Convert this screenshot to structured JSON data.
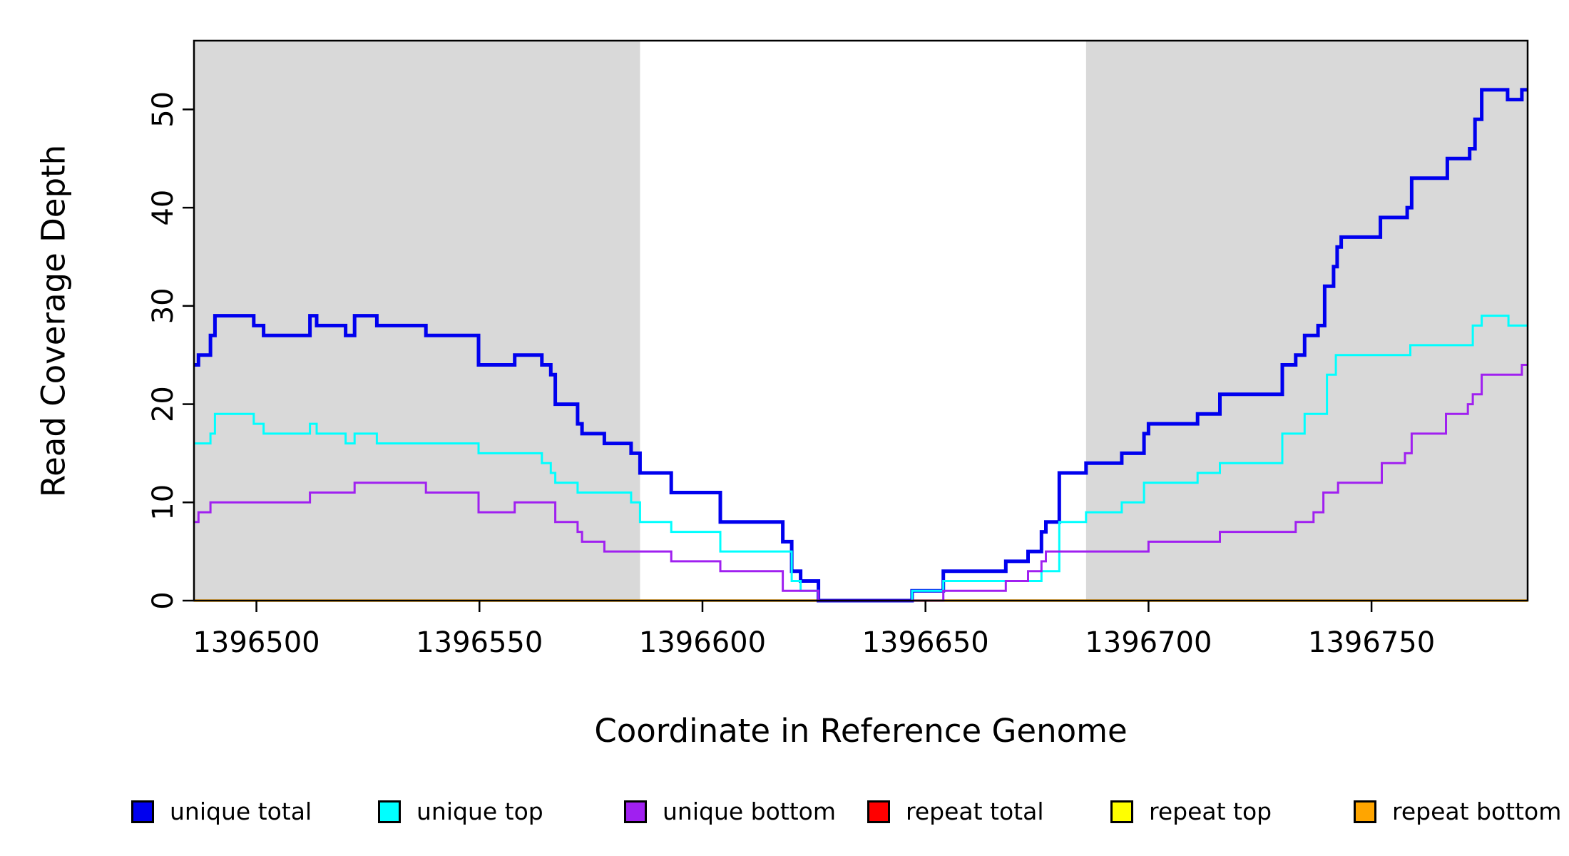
{
  "chart_data": {
    "type": "line",
    "subtype": "step",
    "title": "",
    "xlabel": "Coordinate in Reference Genome",
    "ylabel": "Read Coverage Depth",
    "x_range": [
      1396486,
      1396785
    ],
    "y_max": 57,
    "x_ticks": [
      1396500,
      1396550,
      1396600,
      1396650,
      1396700,
      1396750
    ],
    "y_ticks": [
      0,
      10,
      20,
      30,
      40,
      50
    ],
    "grid": "off",
    "legend_position": "bottom",
    "shaded_color": "#D9D9D9",
    "shaded_regions": [
      {
        "from": 1396486,
        "to": 1396586
      },
      {
        "from": 1396686,
        "to": 1396785
      }
    ],
    "draw_order": [
      3,
      4,
      5,
      0,
      1,
      2
    ],
    "series": [
      {
        "name": "unique total",
        "color": "#0000EE",
        "width": 5,
        "steps": [
          [
            1396486,
            24
          ],
          [
            1396487,
            25
          ],
          [
            1396489.7,
            27
          ],
          [
            1396490.7,
            29
          ],
          [
            1396499.4,
            28
          ],
          [
            1396501.6,
            27
          ],
          [
            1396512,
            29
          ],
          [
            1396513.5,
            28
          ],
          [
            1396520,
            27
          ],
          [
            1396522,
            29
          ],
          [
            1396527,
            28
          ],
          [
            1396538,
            27
          ],
          [
            1396549.8,
            24
          ],
          [
            1396557.9,
            25
          ],
          [
            1396564,
            24
          ],
          [
            1396566,
            23
          ],
          [
            1396567,
            20
          ],
          [
            1396572,
            18
          ],
          [
            1396573,
            17
          ],
          [
            1396578,
            16
          ],
          [
            1396584,
            15
          ],
          [
            1396586,
            13
          ],
          [
            1396593,
            11
          ],
          [
            1396604,
            8
          ],
          [
            1396618,
            6
          ],
          [
            1396620,
            3
          ],
          [
            1396622,
            2
          ],
          [
            1396626,
            0
          ],
          [
            1396647,
            1
          ],
          [
            1396654,
            3
          ],
          [
            1396668,
            4
          ],
          [
            1396673,
            5
          ],
          [
            1396676,
            7
          ],
          [
            1396677,
            8
          ],
          [
            1396680,
            13
          ],
          [
            1396686,
            14
          ],
          [
            1396694,
            15
          ],
          [
            1396699,
            17
          ],
          [
            1396700,
            18
          ],
          [
            1396711,
            19
          ],
          [
            1396716,
            21
          ],
          [
            1396730,
            24
          ],
          [
            1396733,
            25
          ],
          [
            1396735,
            27
          ],
          [
            1396738,
            28
          ],
          [
            1396739.5,
            32
          ],
          [
            1396741.5,
            34
          ],
          [
            1396742.3,
            36
          ],
          [
            1396743.2,
            37
          ],
          [
            1396752,
            39
          ],
          [
            1396758,
            40
          ],
          [
            1396759,
            43
          ],
          [
            1396767,
            45
          ],
          [
            1396772,
            46
          ],
          [
            1396773.2,
            49
          ],
          [
            1396774.7,
            52
          ],
          [
            1396780.5,
            51
          ],
          [
            1396783.7,
            52
          ]
        ]
      },
      {
        "name": "unique top",
        "color": "#00FFFF",
        "width": 3,
        "steps": [
          [
            1396486,
            16
          ],
          [
            1396489.7,
            17
          ],
          [
            1396490.7,
            19
          ],
          [
            1396499.4,
            18
          ],
          [
            1396501.6,
            17
          ],
          [
            1396512,
            18
          ],
          [
            1396513.5,
            17
          ],
          [
            1396520,
            16
          ],
          [
            1396522,
            17
          ],
          [
            1396527,
            16
          ],
          [
            1396549.8,
            15
          ],
          [
            1396564,
            14
          ],
          [
            1396566,
            13
          ],
          [
            1396567,
            12
          ],
          [
            1396572,
            11
          ],
          [
            1396584,
            10
          ],
          [
            1396586,
            8
          ],
          [
            1396593,
            7
          ],
          [
            1396604,
            5
          ],
          [
            1396620,
            2
          ],
          [
            1396622,
            1
          ],
          [
            1396626,
            0
          ],
          [
            1396647,
            1
          ],
          [
            1396654,
            2
          ],
          [
            1396676,
            3
          ],
          [
            1396680,
            8
          ],
          [
            1396686,
            9
          ],
          [
            1396694,
            10
          ],
          [
            1396699,
            12
          ],
          [
            1396711,
            13
          ],
          [
            1396716,
            14
          ],
          [
            1396730,
            17
          ],
          [
            1396735,
            19
          ],
          [
            1396740,
            23
          ],
          [
            1396742,
            25
          ],
          [
            1396758.7,
            26
          ],
          [
            1396772.7,
            28
          ],
          [
            1396774.7,
            29
          ],
          [
            1396780.7,
            28
          ]
        ]
      },
      {
        "name": "unique bottom",
        "color": "#A020F0",
        "width": 3,
        "steps": [
          [
            1396486,
            8
          ],
          [
            1396487,
            9
          ],
          [
            1396489.7,
            10
          ],
          [
            1396512,
            11
          ],
          [
            1396522,
            12
          ],
          [
            1396538,
            11
          ],
          [
            1396549.8,
            9
          ],
          [
            1396557.9,
            10
          ],
          [
            1396567,
            8
          ],
          [
            1396572,
            7
          ],
          [
            1396573,
            6
          ],
          [
            1396578,
            5
          ],
          [
            1396593,
            4
          ],
          [
            1396604,
            3
          ],
          [
            1396618,
            1
          ],
          [
            1396626,
            0
          ],
          [
            1396654,
            1
          ],
          [
            1396668,
            2
          ],
          [
            1396673,
            3
          ],
          [
            1396676,
            4
          ],
          [
            1396677,
            5
          ],
          [
            1396700,
            6
          ],
          [
            1396716,
            7
          ],
          [
            1396733,
            8
          ],
          [
            1396737,
            9
          ],
          [
            1396739.2,
            11
          ],
          [
            1396742.5,
            12
          ],
          [
            1396752.3,
            14
          ],
          [
            1396757.5,
            15
          ],
          [
            1396759,
            17
          ],
          [
            1396766.7,
            19
          ],
          [
            1396771.6,
            20
          ],
          [
            1396772.7,
            21
          ],
          [
            1396774.7,
            23
          ],
          [
            1396783.7,
            24
          ]
        ]
      },
      {
        "name": "repeat total",
        "color": "#FF0000",
        "width": 3,
        "steps": [
          [
            1396486,
            0
          ]
        ]
      },
      {
        "name": "repeat top",
        "color": "#FFFF00",
        "width": 3,
        "steps": [
          [
            1396486,
            0
          ]
        ]
      },
      {
        "name": "repeat bottom",
        "color": "#FFA500",
        "width": 3.5,
        "steps": [
          [
            1396486,
            0
          ]
        ]
      }
    ]
  }
}
